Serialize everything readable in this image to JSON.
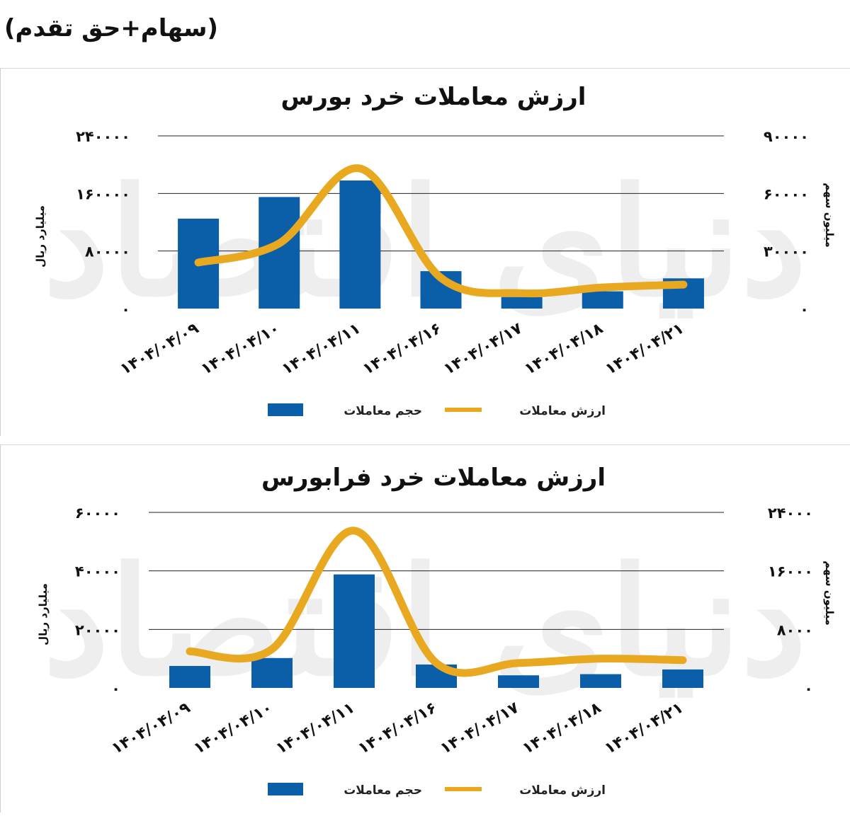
{
  "header": {
    "title": "(سهام+حق تقدم)"
  },
  "watermark": "دنیای اقتصاد",
  "colors": {
    "bars": "#0b5ea8",
    "line": "#e8a820",
    "grid": "#222222"
  },
  "chart_data": [
    {
      "type": "bar",
      "title": "ارزش معاملات خرد بورس",
      "categories": [
        "۱۴۰۴/۰۴/۰۹",
        "۱۴۰۴/۰۴/۱۰",
        "۱۴۰۴/۰۴/۱۱",
        "۱۴۰۴/۰۴/۱۶",
        "۱۴۰۴/۰۴/۱۷",
        "۱۴۰۴/۰۴/۱۸",
        "۱۴۰۴/۰۴/۲۱"
      ],
      "ylabel": "میلیارد ریال",
      "y2label": "میلیون سهم",
      "ylim": [
        0,
        240000
      ],
      "y2lim": [
        0,
        90000
      ],
      "yticks": [
        "۰",
        "۸۰۰۰۰",
        "۱۶۰۰۰۰",
        "۲۴۰۰۰۰"
      ],
      "y2ticks": [
        "۰",
        "۳۰۰۰۰",
        "۶۰۰۰۰",
        "۹۰۰۰۰"
      ],
      "series": [
        {
          "name": "حجم معاملات",
          "kind": "bar",
          "axis": "left",
          "values": [
            125000,
            155000,
            178000,
            52000,
            16000,
            24000,
            42000
          ]
        },
        {
          "name": "ارزش معاملات",
          "kind": "line",
          "axis": "right",
          "values": [
            24000,
            34000,
            73000,
            16000,
            8000,
            11000,
            12500
          ]
        }
      ],
      "legend": "bottom"
    },
    {
      "type": "bar",
      "title": "ارزش معاملات خرد فرابورس",
      "categories": [
        "۱۴۰۴/۰۴/۰۹",
        "۱۴۰۴/۰۴/۱۰",
        "۱۴۰۴/۰۴/۱۱",
        "۱۴۰۴/۰۴/۱۶",
        "۱۴۰۴/۰۴/۱۷",
        "۱۴۰۴/۰۴/۱۸",
        "۱۴۰۴/۰۴/۲۱"
      ],
      "ylabel": "میلیارد ریال",
      "y2label": "میلیون سهم",
      "ylim": [
        0,
        60000
      ],
      "y2lim": [
        0,
        24000
      ],
      "yticks": [
        "۰",
        "۲۰۰۰۰",
        "۴۰۰۰۰",
        "۶۰۰۰۰"
      ],
      "y2ticks": [
        "۰",
        "۸۰۰۰",
        "۱۶۰۰۰",
        "۲۴۰۰۰"
      ],
      "series": [
        {
          "name": "حجم معاملات",
          "kind": "bar",
          "axis": "left",
          "values": [
            7500,
            10200,
            38800,
            8000,
            4300,
            4700,
            6300
          ]
        },
        {
          "name": "ارزش معاملات",
          "kind": "line",
          "axis": "right",
          "values": [
            5000,
            5300,
            21500,
            3400,
            3400,
            4000,
            3800
          ]
        }
      ],
      "legend": "bottom"
    }
  ]
}
